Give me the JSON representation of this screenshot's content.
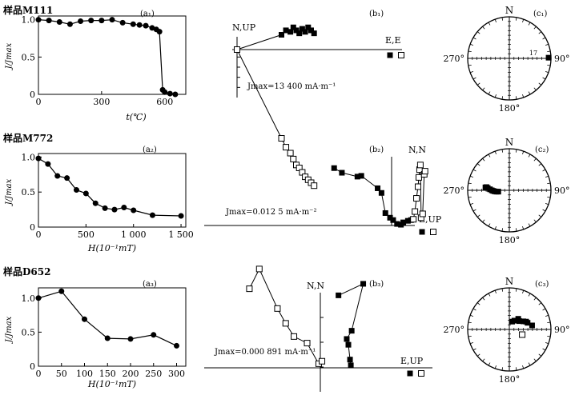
{
  "chart_data": [
    {
      "type": "line",
      "sample_label": "样品M111",
      "panel_label": "(a₁)",
      "xlabel": "t(℃)",
      "ylabel": "J/Jmax",
      "xlim": [
        0,
        700
      ],
      "ylim": [
        0,
        1.05
      ],
      "x_ticks": [
        0,
        300,
        600
      ],
      "y_ticks": [
        0,
        0.5,
        1.0
      ],
      "y_tick_labels": [
        "0",
        "0.5",
        "1.0"
      ],
      "series": [
        {
          "x": [
            0,
            50,
            100,
            150,
            200,
            250,
            300,
            350,
            400,
            450,
            480,
            510,
            540,
            560,
            575,
            590,
            600,
            625,
            650
          ],
          "y": [
            1.0,
            0.99,
            0.97,
            0.94,
            0.98,
            0.99,
            0.99,
            1.0,
            0.96,
            0.94,
            0.93,
            0.92,
            0.89,
            0.87,
            0.84,
            0.06,
            0.03,
            0.01,
            0.0
          ]
        }
      ]
    },
    {
      "type": "scatter",
      "panel_label": "(b₁)",
      "title": "N,UP",
      "axis_end_label": "E,E",
      "annotation": "Jmax=13 400 mA·m⁻¹",
      "x": [
        0,
        0.58
      ],
      "y": [
        -0.95,
        0.35
      ],
      "series": [
        {
          "marker": "filled-square",
          "x": [
            0,
            0.3,
            0.33,
            0.36,
            0.38,
            0.4,
            0.42,
            0.44,
            0.46,
            0.48,
            0.5,
            0.52
          ],
          "y": [
            0,
            0.1,
            0.13,
            0.12,
            0.15,
            0.13,
            0.11,
            0.14,
            0.12,
            0.15,
            0.13,
            0.11
          ]
        },
        {
          "marker": "open-square",
          "x": [
            0,
            0.3,
            0.33,
            0.36,
            0.38,
            0.4,
            0.42,
            0.44,
            0.46,
            0.48,
            0.5,
            0.52
          ],
          "y": [
            0,
            -0.6,
            -0.66,
            -0.7,
            -0.74,
            -0.78,
            -0.8,
            -0.83,
            -0.86,
            -0.88,
            -0.9,
            -0.92
          ]
        }
      ]
    },
    {
      "type": "scatter",
      "panel_label": "(c₁)",
      "directions": [
        "N",
        "270°",
        "90°",
        "180°"
      ],
      "annotation": "17",
      "series": [
        {
          "marker": "filled-square",
          "declination": [
            89
          ],
          "inclination": [
            5
          ]
        }
      ]
    },
    {
      "type": "line",
      "sample_label": "样品M772",
      "panel_label": "(a₂)",
      "xlabel": "H(10⁻¹mT)",
      "ylabel": "J/Jmax",
      "xlim": [
        0,
        1550
      ],
      "ylim": [
        0,
        1.05
      ],
      "x_ticks": [
        0,
        500,
        1000,
        1500
      ],
      "x_tick_labels": [
        "0",
        "500",
        "1 000",
        "1 500"
      ],
      "y_ticks": [
        0,
        0.5,
        1.0
      ],
      "y_tick_labels": [
        "0",
        "0.5",
        "1.0"
      ],
      "series": [
        {
          "x": [
            0,
            100,
            200,
            300,
            400,
            500,
            600,
            700,
            800,
            900,
            1000,
            1200,
            1500
          ],
          "y": [
            0.98,
            0.9,
            0.73,
            0.7,
            0.53,
            0.48,
            0.34,
            0.27,
            0.25,
            0.28,
            0.24,
            0.17,
            0.16
          ]
        }
      ]
    },
    {
      "type": "scatter",
      "panel_label": "(b₂)",
      "title": "N,N",
      "axis_end_label": "E,UP",
      "annotation": "Jmax=0.012 5 mA·m⁻²",
      "series": [
        {
          "marker": "filled-square",
          "x": [
            -0.74,
            -0.64,
            -0.44,
            -0.39,
            -0.18,
            -0.13,
            -0.08,
            -0.02,
            0.02,
            0.07,
            0.12,
            0.15,
            0.21,
            0.25
          ],
          "y": [
            0.74,
            0.68,
            0.63,
            0.64,
            0.48,
            0.42,
            0.16,
            0.1,
            0.07,
            0.02,
            0.01,
            0.04,
            0.06,
            0.07
          ]
        },
        {
          "marker": "open-square",
          "x": [
            0.28,
            0.3,
            0.32,
            0.34,
            0.35,
            0.36,
            0.37,
            0.38,
            0.4,
            0.42,
            0.43
          ],
          "y": [
            0.08,
            0.18,
            0.35,
            0.5,
            0.62,
            0.72,
            0.78,
            0.1,
            0.15,
            0.66,
            0.7
          ]
        }
      ]
    },
    {
      "type": "scatter",
      "panel_label": "(c₂)",
      "directions": [
        "N",
        "270°",
        "90°",
        "180°"
      ],
      "series": [
        {
          "marker": "filled-square",
          "declination": [
            277,
            278,
            276,
            273,
            270,
            268,
            266,
            264,
            263
          ],
          "inclination": [
            38,
            40,
            43,
            48,
            52,
            55,
            58,
            62,
            66
          ]
        }
      ]
    },
    {
      "type": "line",
      "sample_label": "样品D652",
      "panel_label": "(a₃)",
      "xlabel": "H(10⁻¹mT)",
      "ylabel": "J/Jmax",
      "xlim": [
        0,
        320
      ],
      "ylim": [
        0,
        1.15
      ],
      "x_ticks": [
        0,
        50,
        100,
        150,
        200,
        250,
        300
      ],
      "y_ticks": [
        0,
        0.5,
        1.0
      ],
      "y_tick_labels": [
        "0",
        "0.5",
        "1.0"
      ],
      "series": [
        {
          "x": [
            0,
            50,
            100,
            150,
            200,
            250,
            300
          ],
          "y": [
            1.0,
            1.1,
            0.69,
            0.41,
            0.4,
            0.46,
            0.3
          ]
        }
      ]
    },
    {
      "type": "scatter",
      "panel_label": "(b₃)",
      "title": "N,N",
      "axis_end_label": "E,UP",
      "annotation": "Jmax=0.000 891 mA·m⁻¹",
      "series": [
        {
          "marker": "filled-square",
          "x": [
            0.22,
            0.52,
            0.38,
            0.32,
            0.34,
            0.36,
            0.37
          ],
          "y": [
            0.88,
            1.02,
            0.45,
            0.35,
            0.28,
            0.1,
            0.03
          ]
        },
        {
          "marker": "open-square",
          "x": [
            -0.86,
            -0.74,
            -0.52,
            -0.42,
            -0.32,
            -0.16,
            -0.02,
            0.02
          ],
          "y": [
            0.96,
            1.2,
            0.72,
            0.54,
            0.38,
            0.3,
            0.05,
            0.08
          ]
        }
      ]
    },
    {
      "type": "scatter",
      "panel_label": "(c₃)",
      "directions": [
        "N",
        "270°",
        "90°",
        "180°"
      ],
      "series": [
        {
          "marker": "filled-square",
          "declination": [
            20,
            30,
            40,
            50,
            60,
            65,
            70,
            80
          ],
          "inclination": [
            72,
            68,
            60,
            62,
            55,
            50,
            48,
            40
          ]
        },
        {
          "marker": "open-square",
          "declination": [
            112
          ],
          "inclination": [
            60
          ]
        }
      ]
    }
  ]
}
